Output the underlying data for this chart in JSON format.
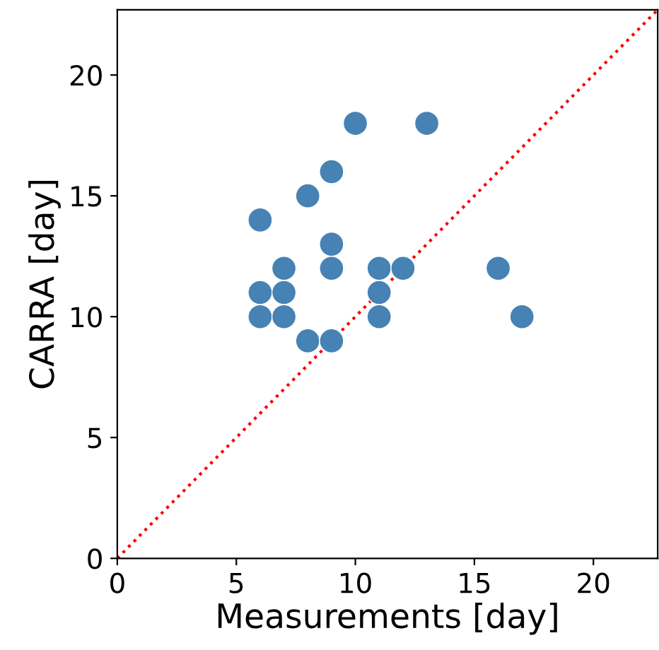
{
  "chart_data": {
    "type": "scatter",
    "xlabel": "Measurements [day]",
    "ylabel": "CARRA [day]",
    "xlim": [
      0,
      22.7
    ],
    "ylim": [
      0,
      22.7
    ],
    "xticks": [
      0,
      5,
      10,
      15,
      20
    ],
    "yticks": [
      0,
      5,
      10,
      15,
      20
    ],
    "grid": false,
    "legend": false,
    "marker": "circle",
    "series": [
      {
        "type": "line",
        "color": "#ff0000",
        "line_style": "dotted",
        "marker": "none",
        "x": [
          0,
          22.7
        ],
        "values": [
          0,
          22.7
        ]
      },
      {
        "color": "#4682b4",
        "x": [
          6,
          6,
          6,
          7,
          7,
          7,
          8,
          8,
          9,
          9,
          9,
          9,
          10,
          11,
          11,
          11,
          12,
          13,
          16,
          17
        ],
        "values": [
          10,
          11,
          14,
          10,
          11,
          12,
          9,
          15,
          9,
          12,
          13,
          16,
          18,
          10,
          11,
          12,
          12,
          18,
          12,
          10
        ]
      }
    ]
  }
}
